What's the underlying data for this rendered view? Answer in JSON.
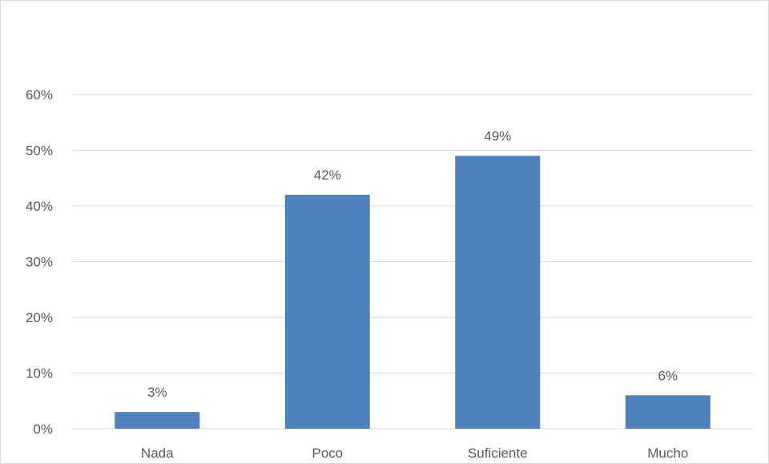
{
  "chart_data": {
    "type": "bar",
    "categories": [
      "Nada",
      "Poco",
      "Suficiente",
      "Mucho"
    ],
    "values": [
      3,
      42,
      49,
      6
    ],
    "data_labels": [
      "3%",
      "42%",
      "49%",
      "6%"
    ],
    "title": "",
    "xlabel": "",
    "ylabel": "",
    "ylim": [
      0,
      60
    ],
    "y_ticks": [
      0,
      10,
      20,
      30,
      40,
      50,
      60
    ],
    "y_tick_labels": [
      "0%",
      "10%",
      "20%",
      "30%",
      "40%",
      "50%",
      "60%"
    ],
    "grid": true,
    "legend": "none",
    "bar_color": "#4f81bd",
    "grid_color": "#d9d9d9"
  }
}
